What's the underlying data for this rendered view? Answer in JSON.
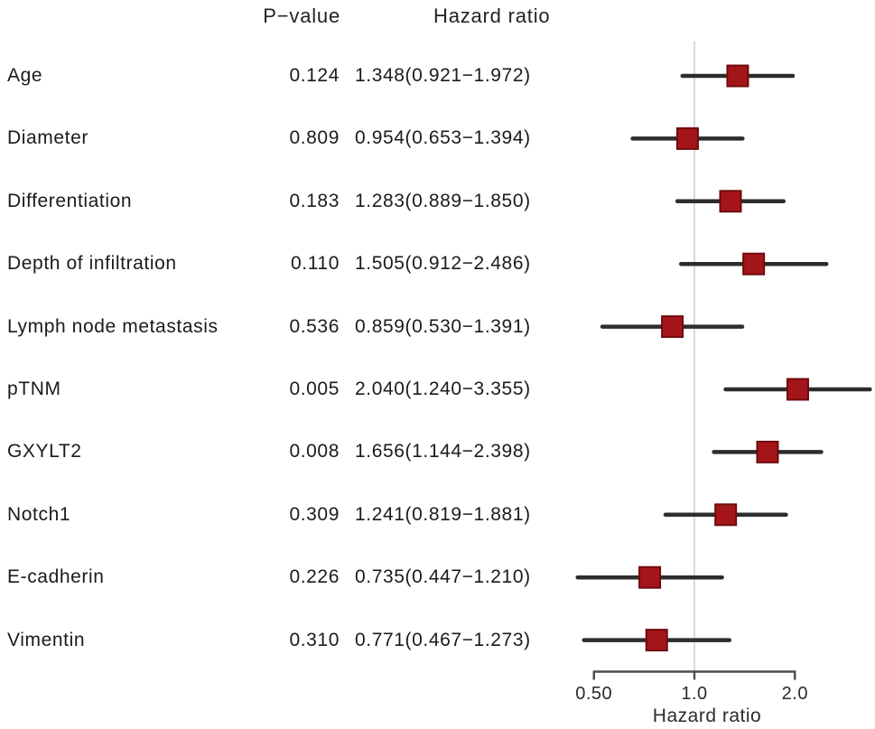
{
  "columns": {
    "p_value_header": "P−value",
    "hazard_ratio_header": "Hazard ratio"
  },
  "chart_data": {
    "type": "scatter",
    "variant": "forest-plot",
    "title": "",
    "xlabel": "Hazard ratio",
    "x_scale": "log",
    "x_range": [
      0.447,
      3.355
    ],
    "x_ticks": [
      {
        "value": 0.5,
        "label": "0.50"
      },
      {
        "value": 1.0,
        "label": "1.0"
      },
      {
        "value": 2.0,
        "label": "2.0"
      }
    ],
    "reference_line_x": 1.0,
    "legend": "none",
    "grid": "off",
    "columns": {
      "p_value_header": "P−value",
      "hazard_ratio_header": "Hazard ratio"
    },
    "rows": [
      {
        "label": "Age",
        "p_value": "0.124",
        "hr": 1.348,
        "ci_low": 0.921,
        "ci_high": 1.972,
        "hr_text": "1.348(0.921−1.972)"
      },
      {
        "label": "Diameter",
        "p_value": "0.809",
        "hr": 0.954,
        "ci_low": 0.653,
        "ci_high": 1.394,
        "hr_text": "0.954(0.653−1.394)"
      },
      {
        "label": "Differentiation",
        "p_value": "0.183",
        "hr": 1.283,
        "ci_low": 0.889,
        "ci_high": 1.85,
        "hr_text": "1.283(0.889−1.850)"
      },
      {
        "label": "Depth of infiltration",
        "p_value": "0.110",
        "hr": 1.505,
        "ci_low": 0.912,
        "ci_high": 2.486,
        "hr_text": "1.505(0.912−2.486)"
      },
      {
        "label": "Lymph node metastasis",
        "p_value": "0.536",
        "hr": 0.859,
        "ci_low": 0.53,
        "ci_high": 1.391,
        "hr_text": "0.859(0.530−1.391)"
      },
      {
        "label": "pTNM",
        "p_value": "0.005",
        "hr": 2.04,
        "ci_low": 1.24,
        "ci_high": 3.355,
        "hr_text": "2.040(1.240−3.355)"
      },
      {
        "label": "GXYLT2",
        "p_value": "0.008",
        "hr": 1.656,
        "ci_low": 1.144,
        "ci_high": 2.398,
        "hr_text": "1.656(1.144−2.398)"
      },
      {
        "label": "Notch1",
        "p_value": "0.309",
        "hr": 1.241,
        "ci_low": 0.819,
        "ci_high": 1.881,
        "hr_text": "1.241(0.819−1.881)"
      },
      {
        "label": "E-cadherin",
        "p_value": "0.226",
        "hr": 0.735,
        "ci_low": 0.447,
        "ci_high": 1.21,
        "hr_text": "0.735(0.447−1.210)"
      },
      {
        "label": "Vimentin",
        "p_value": "0.310",
        "hr": 0.771,
        "ci_low": 0.467,
        "ci_high": 1.273,
        "hr_text": "0.771(0.467−1.273)"
      }
    ],
    "colors": {
      "marker_fill": "#a41519",
      "marker_border": "#6f0a0d",
      "ci_line": "#2d2d2d",
      "reference_line": "#d9d9d9",
      "axis": "#4f4f4f",
      "axis_text": "#2b2b2b",
      "text": "#1b1b1b"
    }
  }
}
